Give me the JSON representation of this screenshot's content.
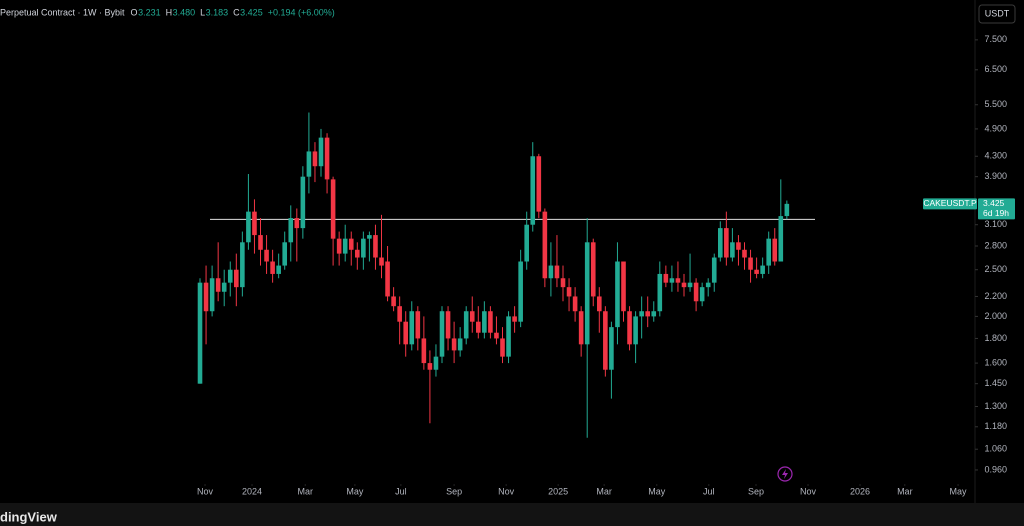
{
  "header": {
    "title": "Perpetual Contract · 1W · Bybit",
    "ohlc": [
      {
        "key": "O",
        "value": "3.231"
      },
      {
        "key": "H",
        "value": "3.480"
      },
      {
        "key": "L",
        "value": "3.183"
      },
      {
        "key": "C",
        "value": "3.425"
      }
    ],
    "change": "+0.194 (+6.00%)"
  },
  "currency_button": "USDT",
  "footer_logo": "dingView",
  "chart_data": {
    "type": "candlestick",
    "symbol_label": "CAKEUSDT.P",
    "countdown": "6d 19h",
    "up_color": "#22ab94",
    "down_color": "#f23645",
    "log_scale": true,
    "grid": false,
    "hline": 3.18,
    "ylim": [
      0.915,
      8.86
    ],
    "yticks": [
      {
        "value": 7.5,
        "label": "7.500"
      },
      {
        "value": 6.5,
        "label": "6.500"
      },
      {
        "value": 5.5,
        "label": "5.500"
      },
      {
        "value": 4.9,
        "label": "4.900"
      },
      {
        "value": 4.3,
        "label": "4.300"
      },
      {
        "value": 3.9,
        "label": "3.900"
      },
      {
        "value": 3.1,
        "label": "3.100"
      },
      {
        "value": 2.8,
        "label": "2.800"
      },
      {
        "value": 2.5,
        "label": "2.500"
      },
      {
        "value": 2.2,
        "label": "2.200"
      },
      {
        "value": 2,
        "label": "2.000"
      },
      {
        "value": 1.8,
        "label": "1.800"
      },
      {
        "value": 1.6,
        "label": "1.600"
      },
      {
        "value": 1.45,
        "label": "1.450"
      },
      {
        "value": 1.3,
        "label": "1.300"
      },
      {
        "value": 1.18,
        "label": "1.180"
      },
      {
        "value": 1.06,
        "label": "1.060"
      },
      {
        "value": 0.96,
        "label": "0.960"
      }
    ],
    "xlim": [
      -33.06,
      128.1
    ],
    "xticks": [
      {
        "value": 0.83,
        "label": "Nov"
      },
      {
        "value": 8.6,
        "label": "2024"
      },
      {
        "value": 17.4,
        "label": "Mar"
      },
      {
        "value": 25.6,
        "label": "May"
      },
      {
        "value": 33.2,
        "label": "Jul"
      },
      {
        "value": 42.0,
        "label": "Sep"
      },
      {
        "value": 50.6,
        "label": "Nov"
      },
      {
        "value": 59.2,
        "label": "2025"
      },
      {
        "value": 66.8,
        "label": "Mar"
      },
      {
        "value": 75.5,
        "label": "May"
      },
      {
        "value": 84.1,
        "label": "Jul"
      },
      {
        "value": 91.9,
        "label": "Sep"
      },
      {
        "value": 100.5,
        "label": "Nov"
      },
      {
        "value": 109.1,
        "label": "2026"
      },
      {
        "value": 116.5,
        "label": "Mar"
      },
      {
        "value": 125.3,
        "label": "May"
      }
    ],
    "open": [
      1.45,
      2.35,
      2.05,
      2.4,
      2.25,
      2.35,
      2.5,
      2.3,
      2.85,
      3.3,
      2.95,
      2.75,
      2.6,
      2.45,
      2.55,
      2.85,
      3.2,
      3.05,
      3.9,
      4.4,
      4.1,
      4.7,
      3.85,
      2.9,
      2.7,
      2.9,
      2.75,
      2.65,
      2.9,
      2.95,
      2.65,
      2.6,
      2.2,
      2.1,
      1.95,
      1.75,
      2.05,
      1.8,
      1.6,
      1.55,
      1.65,
      2.05,
      1.8,
      1.7,
      1.8,
      2.05,
      1.95,
      1.85,
      2.05,
      1.85,
      1.8,
      1.65,
      2.0,
      1.95,
      2.6,
      3.1,
      4.3,
      3.3,
      2.4,
      2.55,
      2.4,
      2.3,
      2.2,
      2.05,
      1.75,
      2.85,
      2.2,
      2.05,
      1.55,
      1.9,
      2.6,
      2.05,
      1.75,
      2.0,
      2.05,
      2.0,
      2.05,
      2.45,
      2.35,
      2.4,
      2.35,
      2.3,
      2.35,
      2.15,
      2.3,
      2.35,
      2.65,
      3.05,
      2.65,
      2.85,
      2.75,
      2.65,
      2.5,
      2.45,
      2.55,
      2.9,
      2.6,
      3.231
    ],
    "high": [
      2.4,
      2.55,
      2.55,
      2.85,
      2.5,
      2.6,
      2.7,
      3.0,
      3.95,
      3.5,
      3.2,
      2.95,
      2.75,
      2.7,
      3.0,
      3.4,
      3.35,
      4.1,
      5.3,
      4.6,
      4.9,
      4.8,
      3.9,
      3.0,
      3.1,
      3.0,
      2.85,
      3.0,
      3.0,
      3.1,
      3.25,
      2.8,
      2.3,
      2.2,
      2.05,
      2.15,
      2.1,
      2.0,
      1.7,
      1.75,
      2.1,
      2.1,
      1.95,
      1.9,
      2.1,
      2.2,
      2.1,
      2.15,
      2.1,
      2.0,
      1.9,
      2.05,
      2.1,
      2.75,
      3.3,
      4.6,
      4.35,
      3.35,
      2.85,
      2.95,
      2.55,
      2.4,
      2.3,
      2.1,
      3.2,
      2.9,
      2.3,
      2.1,
      1.95,
      2.85,
      2.6,
      2.1,
      2.05,
      2.2,
      2.2,
      2.15,
      2.6,
      2.55,
      2.55,
      2.6,
      2.45,
      2.7,
      2.4,
      2.35,
      2.4,
      2.7,
      3.15,
      3.3,
      3.05,
      2.95,
      2.85,
      2.75,
      2.65,
      2.65,
      3.0,
      3.05,
      3.85,
      3.48
    ],
    "low": [
      1.45,
      1.75,
      2.0,
      2.15,
      2.1,
      2.2,
      2.1,
      2.2,
      2.75,
      2.7,
      2.55,
      2.45,
      2.35,
      2.4,
      2.5,
      2.6,
      2.6,
      2.9,
      3.6,
      3.8,
      3.9,
      3.6,
      2.55,
      2.55,
      2.6,
      2.55,
      2.5,
      2.5,
      2.6,
      2.5,
      2.4,
      2.15,
      2.05,
      1.75,
      1.65,
      1.7,
      1.7,
      1.55,
      1.2,
      1.5,
      1.6,
      1.7,
      1.6,
      1.65,
      1.75,
      1.85,
      1.8,
      1.8,
      1.8,
      1.75,
      1.6,
      1.6,
      1.85,
      1.9,
      2.5,
      3.0,
      3.2,
      2.3,
      2.2,
      2.3,
      2.15,
      2.05,
      1.95,
      1.65,
      1.12,
      2.1,
      1.85,
      1.5,
      1.35,
      1.75,
      1.95,
      1.7,
      1.6,
      1.8,
      1.9,
      1.95,
      2.0,
      2.3,
      2.25,
      2.25,
      2.2,
      2.25,
      2.05,
      2.1,
      2.2,
      2.25,
      2.6,
      2.55,
      2.6,
      2.55,
      2.5,
      2.35,
      2.4,
      2.4,
      2.45,
      2.55,
      2.6,
      3.183
    ],
    "close": [
      2.35,
      2.05,
      2.4,
      2.25,
      2.35,
      2.5,
      2.3,
      2.85,
      3.3,
      2.95,
      2.75,
      2.6,
      2.45,
      2.55,
      2.85,
      3.2,
      3.05,
      3.9,
      4.4,
      4.1,
      4.7,
      3.85,
      2.9,
      2.7,
      2.9,
      2.75,
      2.65,
      2.9,
      2.95,
      2.65,
      2.55,
      2.2,
      2.1,
      1.95,
      1.75,
      2.05,
      1.8,
      1.6,
      1.55,
      1.65,
      2.05,
      1.8,
      1.7,
      1.8,
      2.05,
      1.95,
      1.85,
      2.05,
      1.85,
      1.8,
      1.65,
      2.0,
      1.95,
      2.6,
      3.1,
      4.3,
      3.3,
      2.4,
      2.55,
      2.4,
      2.3,
      2.2,
      2.05,
      1.75,
      2.85,
      2.2,
      2.05,
      1.55,
      1.9,
      2.6,
      2.05,
      1.75,
      2.0,
      2.05,
      2.0,
      2.05,
      2.45,
      2.35,
      2.4,
      2.35,
      2.3,
      2.35,
      2.15,
      2.3,
      2.35,
      2.65,
      3.05,
      2.65,
      2.85,
      2.75,
      2.65,
      2.5,
      2.45,
      2.55,
      2.9,
      2.6,
      3.23,
      3.425
    ]
  }
}
